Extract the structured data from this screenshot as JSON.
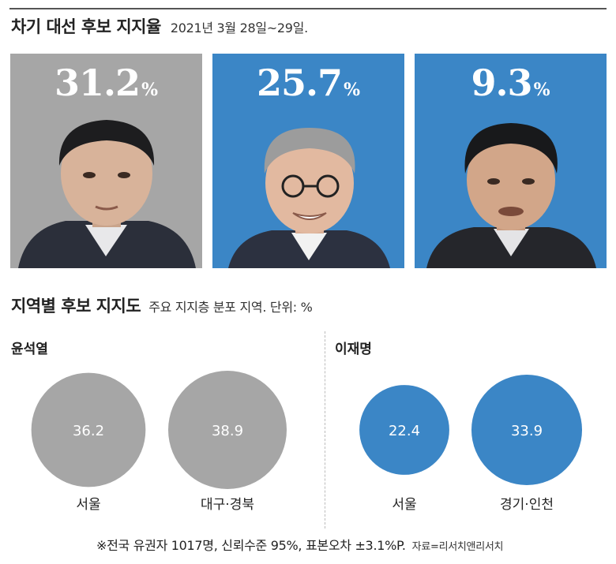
{
  "header": {
    "title": "차기 대선 후보 지지율",
    "date": "2021년 3월 28일~29일."
  },
  "candidates": [
    {
      "value": "31.2",
      "unit": "%",
      "bg": "#a6a6a6"
    },
    {
      "value": "25.7",
      "unit": "%",
      "bg": "#3b86c6"
    },
    {
      "value": "9.3",
      "unit": "%",
      "bg": "#3b86c6"
    }
  ],
  "section2": {
    "title": "지역별 후보 지지도",
    "subtitle": "주요 지지층 분포 지역. 단위: %"
  },
  "groups": {
    "left_label": "윤석열",
    "right_label": "이재명"
  },
  "colors": {
    "gray": "#a6a6a6",
    "blue": "#3b86c6"
  },
  "chart_data": {
    "type": "bubble",
    "groups": [
      {
        "name": "윤석열",
        "regions": [
          "서울",
          "대구·경북"
        ],
        "values": [
          36.2,
          38.9
        ],
        "color": "#a6a6a6"
      },
      {
        "name": "이재명",
        "regions": [
          "서울",
          "경기·인천"
        ],
        "values": [
          22.4,
          33.9
        ],
        "color": "#3b86c6"
      }
    ]
  },
  "footnote": {
    "text": "※전국 유권자 1017명, 신뢰수준 95%, 표본오차 ±3.1%P.",
    "source": "자료=리서치앤리서치"
  }
}
